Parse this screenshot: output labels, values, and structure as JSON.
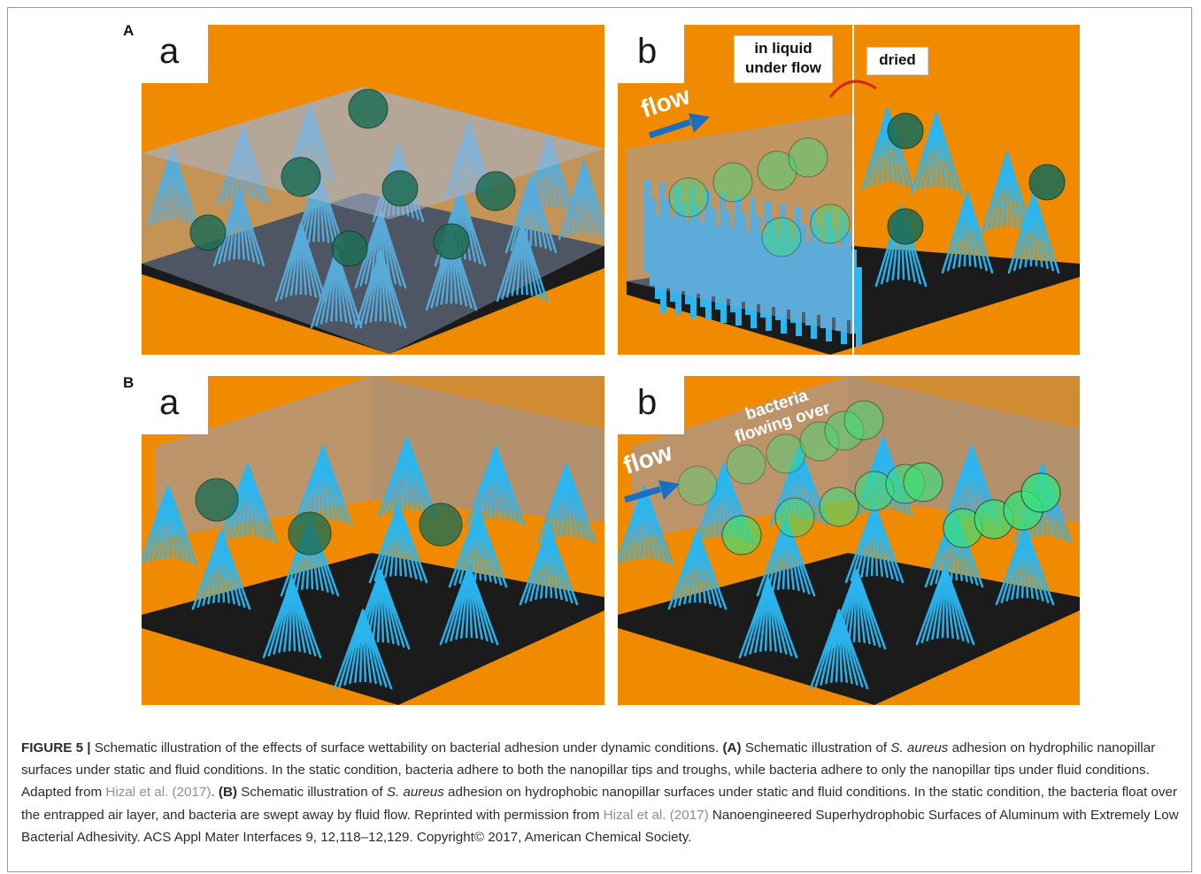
{
  "figure": {
    "panel_A_letter": "A",
    "panel_B_letter": "B",
    "subpanels": {
      "Aa": "a",
      "Ab": "b",
      "Ba": "a",
      "Bb": "b"
    },
    "Ab_tags": {
      "liquid": "in liquid under flow",
      "dried": "dried",
      "flow": "flow"
    },
    "Bb_tags": {
      "bacteria": "bacteria flowing over",
      "flow": "flow"
    },
    "colors": {
      "background": "#f08a00",
      "pillars": "#2bb6f0",
      "substrate": "#1b1b1b",
      "liquid": "#8f9fbf",
      "bacteria_adhered": "#1f6e54",
      "bacteria_flowing": "#3de07a",
      "flow_arrow": "#1a6fc0"
    }
  },
  "caption": {
    "label": "FIGURE 5 |",
    "p1": " Schematic illustration of the effects of surface wettability on bacterial adhesion under dynamic conditions. ",
    "A_tag": "(A)",
    "p2": " Schematic illustration of ",
    "species1": "S. aureus",
    "p3": " adhesion on hydrophilic nanopillar surfaces under static and fluid conditions. In the static condition, bacteria adhere to both the nanopillar tips and troughs, while bacteria adhere to only the nanopillar tips under fluid conditions. Adapted from ",
    "ref1": "Hizal et al. (2017)",
    "p4": ". ",
    "B_tag": "(B)",
    "p5": " Schematic illustration of ",
    "species2": "S. aureus",
    "p6": " adhesion on hydrophobic nanopillar surfaces under static and fluid conditions. In the static condition, the bacteria float over the entrapped air layer, and bacteria are swept away by fluid flow. Reprinted with permission from ",
    "ref2": "Hizal et al. (2017)",
    "p7": " Nanoengineered Superhydrophobic Surfaces of Aluminum with Extremely Low Bacterial Adhesivity. ACS Appl Mater Interfaces 9, 12,118–12,129. Copyright© 2017, American Chemical Society."
  }
}
